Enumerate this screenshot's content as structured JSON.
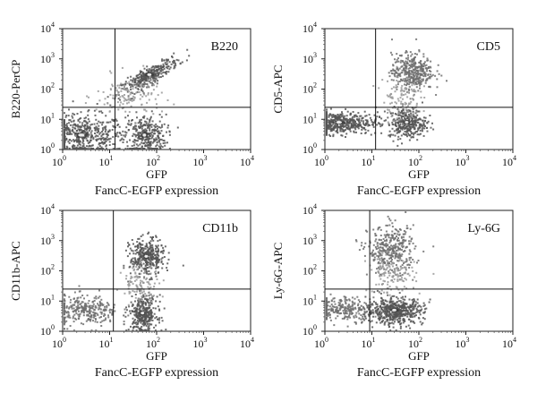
{
  "chart_data": [
    {
      "type": "scatter",
      "panel_label": "B220",
      "xlabel": "GFP",
      "ylabel": "B220-PerCP",
      "caption": "FancC-EGFP expression",
      "xscale": "log",
      "yscale": "log",
      "xlim": [
        1,
        10000
      ],
      "ylim": [
        1,
        10000
      ],
      "x_ticks": [
        "10^0",
        "10^1",
        "10^2",
        "10^3",
        "10^4"
      ],
      "y_ticks": [
        "10^0",
        "10^1",
        "10^2",
        "10^3",
        "10^4"
      ],
      "gate": {
        "x": 13,
        "y": 25
      },
      "populations": [
        {
          "x": 2.5,
          "y": 3,
          "spread_x": 0.45,
          "spread_y": 0.35,
          "n": 520,
          "density": "high"
        },
        {
          "x": 55,
          "y": 3,
          "spread_x": 0.22,
          "spread_y": 0.35,
          "n": 320,
          "density": "high"
        },
        {
          "x": 70,
          "y": 300,
          "spread_x": 0.3,
          "spread_y": 0.25,
          "n": 330,
          "density": "high",
          "correlated": true
        },
        {
          "x": 25,
          "y": 60,
          "spread_x": 0.35,
          "spread_y": 0.35,
          "n": 140,
          "density": "low"
        }
      ]
    },
    {
      "type": "scatter",
      "panel_label": "CD5",
      "xlabel": "GFP",
      "ylabel": "CD5-APC",
      "caption": "FancC-EGFP expression",
      "xscale": "log",
      "yscale": "log",
      "xlim": [
        1,
        10000
      ],
      "ylim": [
        1,
        10000
      ],
      "x_ticks": [
        "10^0",
        "10^1",
        "10^2",
        "10^3",
        "10^4"
      ],
      "y_ticks": [
        "10^0",
        "10^1",
        "10^2",
        "10^3",
        "10^4"
      ],
      "gate": {
        "x": 12,
        "y": 25
      },
      "populations": [
        {
          "x": 2,
          "y": 8,
          "spread_x": 0.4,
          "spread_y": 0.18,
          "n": 480,
          "density": "high"
        },
        {
          "x": 55,
          "y": 8,
          "spread_x": 0.2,
          "spread_y": 0.25,
          "n": 320,
          "density": "high"
        },
        {
          "x": 70,
          "y": 400,
          "spread_x": 0.22,
          "spread_y": 0.3,
          "n": 380,
          "density": "medium"
        },
        {
          "x": 40,
          "y": 60,
          "spread_x": 0.2,
          "spread_y": 0.4,
          "n": 120,
          "density": "low"
        }
      ]
    },
    {
      "type": "scatter",
      "panel_label": "CD11b",
      "xlabel": "GFP",
      "ylabel": "CD11b-APC",
      "caption": "FancC-EGFP expression",
      "xscale": "log",
      "yscale": "log",
      "xlim": [
        1,
        10000
      ],
      "ylim": [
        1,
        10000
      ],
      "x_ticks": [
        "10^0",
        "10^1",
        "10^2",
        "10^3",
        "10^4"
      ],
      "y_ticks": [
        "10^0",
        "10^1",
        "10^2",
        "10^3",
        "10^4"
      ],
      "gate": {
        "x": 12,
        "y": 25
      },
      "populations": [
        {
          "x": 3,
          "y": 5,
          "spread_x": 0.35,
          "spread_y": 0.25,
          "n": 300,
          "density": "medium"
        },
        {
          "x": 50,
          "y": 4,
          "spread_x": 0.15,
          "spread_y": 0.3,
          "n": 340,
          "density": "high"
        },
        {
          "x": 60,
          "y": 300,
          "spread_x": 0.18,
          "spread_y": 0.3,
          "n": 360,
          "density": "high"
        },
        {
          "x": 45,
          "y": 40,
          "spread_x": 0.2,
          "spread_y": 0.3,
          "n": 110,
          "density": "low"
        }
      ]
    },
    {
      "type": "scatter",
      "panel_label": "Ly-6G",
      "xlabel": "GFP",
      "ylabel": "Ly-6G-APC",
      "caption": "FancC-EGFP expression",
      "xscale": "log",
      "yscale": "log",
      "xlim": [
        1,
        10000
      ],
      "ylim": [
        1,
        10000
      ],
      "x_ticks": [
        "10^0",
        "10^1",
        "10^2",
        "10^3",
        "10^4"
      ],
      "y_ticks": [
        "10^0",
        "10^1",
        "10^2",
        "10^3",
        "10^4"
      ],
      "gate": {
        "x": 9,
        "y": 25
      },
      "populations": [
        {
          "x": 2.5,
          "y": 6,
          "spread_x": 0.35,
          "spread_y": 0.2,
          "n": 260,
          "density": "medium"
        },
        {
          "x": 30,
          "y": 5,
          "spread_x": 0.3,
          "spread_y": 0.22,
          "n": 520,
          "density": "high"
        },
        {
          "x": 25,
          "y": 500,
          "spread_x": 0.25,
          "spread_y": 0.4,
          "n": 360,
          "density": "medium"
        },
        {
          "x": 25,
          "y": 80,
          "spread_x": 0.25,
          "spread_y": 0.3,
          "n": 130,
          "density": "low"
        }
      ]
    }
  ]
}
